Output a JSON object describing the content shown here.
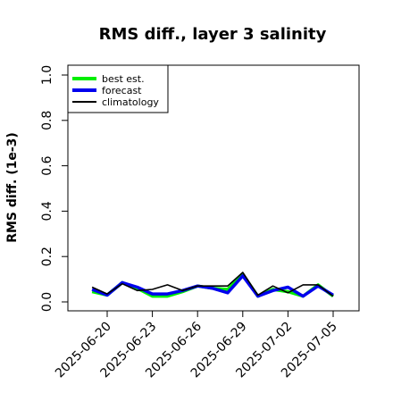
{
  "chart_data": {
    "type": "line",
    "title": "RMS diff., layer 3 salinity",
    "xlabel": "",
    "ylabel": "RMS diff. (1e-3)",
    "ylim": [
      0,
      1.0
    ],
    "y_ticks": [
      "0.0",
      "0.2",
      "0.4",
      "0.6",
      "0.8",
      "1.0"
    ],
    "y_tick_values": [
      0,
      0.2,
      0.4,
      0.6,
      0.8,
      1.0
    ],
    "x": [
      "2025-06-19",
      "2025-06-20",
      "2025-06-21",
      "2025-06-22",
      "2025-06-23",
      "2025-06-24",
      "2025-06-25",
      "2025-06-26",
      "2025-06-27",
      "2025-06-28",
      "2025-06-29",
      "2025-06-30",
      "2025-07-01",
      "2025-07-02",
      "2025-07-03",
      "2025-07-04",
      "2025-07-05"
    ],
    "x_ticks": [
      "2025-06-20",
      "2025-06-23",
      "2025-06-26",
      "2025-06-29",
      "2025-07-02",
      "2025-07-05"
    ],
    "highlight_tick": "2025-06-26",
    "highlight_color": "#228b22",
    "legend_position": "upper-left",
    "grid": false,
    "series": [
      {
        "name": "best est.",
        "color": "#00ee00",
        "values": [
          0.045,
          0.03,
          0.085,
          0.06,
          0.025,
          0.025,
          0.045,
          0.07,
          0.06,
          0.055,
          0.12,
          0.025,
          0.055,
          0.045,
          0.025,
          0.075,
          0.025
        ]
      },
      {
        "name": "forecast",
        "color": "#0000ee",
        "values": [
          0.055,
          0.03,
          0.085,
          0.065,
          0.035,
          0.035,
          0.05,
          0.07,
          0.06,
          0.04,
          0.115,
          0.025,
          0.05,
          0.065,
          0.025,
          0.07,
          0.03
        ]
      },
      {
        "name": "climatology",
        "color": "#000000",
        "values": [
          0.065,
          0.035,
          0.08,
          0.05,
          0.055,
          0.075,
          0.05,
          0.07,
          0.07,
          0.07,
          0.13,
          0.03,
          0.07,
          0.04,
          0.075,
          0.075,
          0.025
        ]
      }
    ]
  }
}
